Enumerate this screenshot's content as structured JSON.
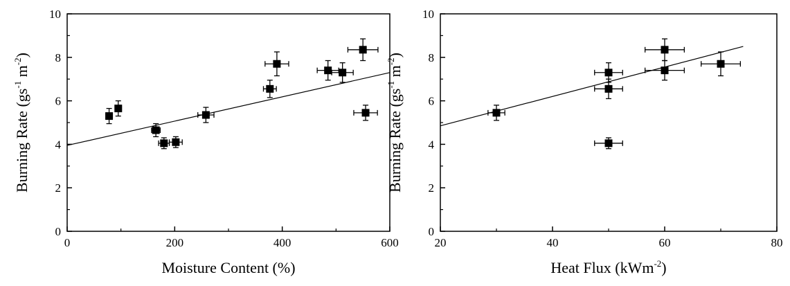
{
  "chart_data": [
    {
      "type": "scatter",
      "title": "",
      "xlabel": "Moisture Content (%)",
      "ylabel_parts": [
        "Burning Rate (gs",
        "-1",
        " m",
        "-2",
        ")"
      ],
      "xlim": [
        0,
        600
      ],
      "ylim": [
        0,
        10
      ],
      "xticks": [
        0,
        200,
        400,
        600
      ],
      "yticks": [
        0,
        2,
        4,
        6,
        8,
        10
      ],
      "grid": false,
      "points": [
        {
          "x": 78,
          "y": 5.3,
          "xerr": 6,
          "yerr": 0.35
        },
        {
          "x": 95,
          "y": 5.65,
          "xerr": 6,
          "yerr": 0.35
        },
        {
          "x": 165,
          "y": 4.65,
          "xerr": 8,
          "yerr": 0.3
        },
        {
          "x": 180,
          "y": 4.05,
          "xerr": 10,
          "yerr": 0.25
        },
        {
          "x": 202,
          "y": 4.1,
          "xerr": 12,
          "yerr": 0.25
        },
        {
          "x": 258,
          "y": 5.35,
          "xerr": 15,
          "yerr": 0.35
        },
        {
          "x": 377,
          "y": 6.55,
          "xerr": 12,
          "yerr": 0.4
        },
        {
          "x": 390,
          "y": 7.7,
          "xerr": 22,
          "yerr": 0.55
        },
        {
          "x": 485,
          "y": 7.4,
          "xerr": 20,
          "yerr": 0.45
        },
        {
          "x": 512,
          "y": 7.3,
          "xerr": 20,
          "yerr": 0.45
        },
        {
          "x": 550,
          "y": 8.35,
          "xerr": 28,
          "yerr": 0.5
        },
        {
          "x": 555,
          "y": 5.45,
          "xerr": 22,
          "yerr": 0.35
        }
      ],
      "fit_line": {
        "x": [
          0,
          600
        ],
        "y": [
          3.95,
          7.3
        ]
      }
    },
    {
      "type": "scatter",
      "title": "",
      "xlabel_parts": [
        "Heat Flux (kWm",
        "-2",
        ")"
      ],
      "ylabel_parts": [
        "Burning Rate (gs",
        "-1",
        " m",
        "-2",
        ")"
      ],
      "xlim": [
        20,
        80
      ],
      "ylim": [
        0,
        10
      ],
      "xticks": [
        20,
        40,
        60,
        80
      ],
      "yticks": [
        0,
        2,
        4,
        6,
        8,
        10
      ],
      "grid": false,
      "points": [
        {
          "x": 30,
          "y": 5.45,
          "xerr": 1.5,
          "yerr": 0.35
        },
        {
          "x": 50,
          "y": 7.3,
          "xerr": 2.5,
          "yerr": 0.45
        },
        {
          "x": 50,
          "y": 6.55,
          "xerr": 2.5,
          "yerr": 0.45
        },
        {
          "x": 50,
          "y": 4.05,
          "xerr": 2.5,
          "yerr": 0.25
        },
        {
          "x": 60,
          "y": 8.35,
          "xerr": 3.5,
          "yerr": 0.5
        },
        {
          "x": 60,
          "y": 7.4,
          "xerr": 3.5,
          "yerr": 0.45
        },
        {
          "x": 70,
          "y": 7.7,
          "xerr": 3.5,
          "yerr": 0.55
        }
      ],
      "fit_line": {
        "x": [
          20,
          74
        ],
        "y": [
          4.85,
          8.5
        ]
      }
    }
  ]
}
